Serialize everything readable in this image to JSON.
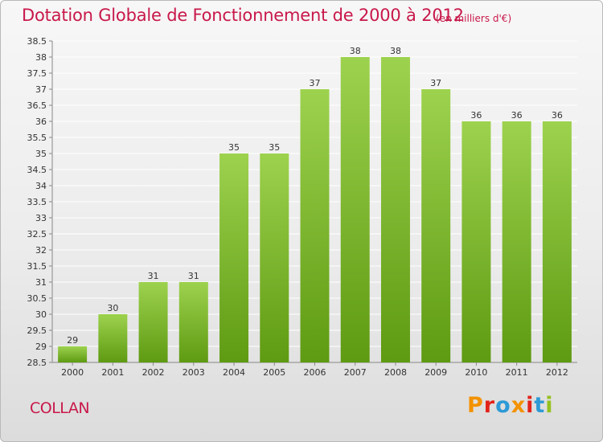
{
  "header": {
    "title": "Dotation Globale de Fonctionnement de 2000 à 2012",
    "unit_note": "(en milliers d'€)"
  },
  "footer": {
    "commune": "COLLAN",
    "logo_text": "Proxiti",
    "logo_colors": [
      "#f39200",
      "#e2231a",
      "#2d9ad6",
      "#f39200",
      "#e2231a",
      "#2d9ad6",
      "#95c11f"
    ]
  },
  "colors": {
    "title": "#c8184a",
    "bar_light": "#9dd24e",
    "bar_dark": "#5e9a12",
    "grid": "#ffffff"
  },
  "chart_data": {
    "type": "bar",
    "title": "Dotation Globale de Fonctionnement de 2000 à 2012",
    "subtitle": "(en milliers d'€)",
    "xlabel": "",
    "ylabel": "",
    "categories": [
      "2000",
      "2001",
      "2002",
      "2003",
      "2004",
      "2005",
      "2006",
      "2007",
      "2008",
      "2009",
      "2010",
      "2011",
      "2012"
    ],
    "values": [
      29,
      30,
      31,
      31,
      35,
      35,
      37,
      38,
      38,
      37,
      36,
      36,
      36
    ],
    "ylim": [
      28.5,
      38.5
    ],
    "yticks": [
      "28.5",
      "29",
      "29.5",
      "30",
      "30.5",
      "31",
      "31.5",
      "32",
      "32.5",
      "33",
      "33.5",
      "34",
      "34.5",
      "35",
      "35.5",
      "36",
      "36.5",
      "37",
      "37.5",
      "38",
      "38.5"
    ],
    "grid": true,
    "data_labels": true
  }
}
